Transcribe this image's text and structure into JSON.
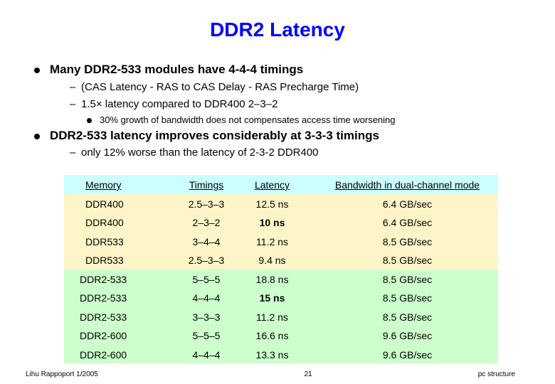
{
  "title": "DDR2 Latency",
  "bullets": {
    "b1": "Many DDR2-533 modules have 4-4-4 timings",
    "b1_sub1": "(CAS Latency - RAS to CAS Delay - RAS Precharge Time)",
    "b1_sub2": "1.5× latency compared to DDR400 2–3–2",
    "b1_sub2_sub": "30% growth of bandwidth does not compensates access time worsening",
    "b2": "DDR2-533 latency improves considerably at 3-3-3 timings",
    "b2_sub1": "only 12% worse than the latency of 2-3-2 DDR400"
  },
  "dash": "–",
  "table": {
    "headers": [
      "Memory",
      "Timings",
      "Latency",
      "Bandwidth in dual-channel mode"
    ],
    "rows": [
      {
        "memory": "DDR400",
        "timings": "2.5–3–3",
        "latency": "12.5 ns",
        "bandwidth": "6.4 GB/sec"
      },
      {
        "memory": "DDR400",
        "timings": "2–3–2",
        "latency": "10 ns",
        "bandwidth": "6.4 GB/sec"
      },
      {
        "memory": "DDR533",
        "timings": "3–4–4",
        "latency": "11.2 ns",
        "bandwidth": "8.5 GB/sec"
      },
      {
        "memory": "DDR533",
        "timings": "2.5–3–3",
        "latency": "9.4 ns",
        "bandwidth": "8.5 GB/sec"
      },
      {
        "memory": "DDR2-533",
        "timings": "5–5–5",
        "latency": "18.8 ns",
        "bandwidth": "8.5 GB/sec"
      },
      {
        "memory": "DDR2-533",
        "timings": "4–4–4",
        "latency": "15 ns",
        "bandwidth": "8.5 GB/sec"
      },
      {
        "memory": "DDR2-533",
        "timings": "3–3–3",
        "latency": "11.2 ns",
        "bandwidth": "8.5 GB/sec"
      },
      {
        "memory": "DDR2-600",
        "timings": "5–5–5",
        "latency": "16.6 ns",
        "bandwidth": "9.6 GB/sec"
      },
      {
        "memory": "DDR2-600",
        "timings": "4–4–4",
        "latency": "13.3 ns",
        "bandwidth": "9.6 GB/sec"
      }
    ]
  },
  "colors": {
    "title": "#0000ff",
    "header_row": "#ccffff",
    "ddr_rows": "#fff5c8",
    "ddr2_rows": "#ccffcc"
  },
  "footer": {
    "author": "Lihu Rappoport 1/2005",
    "page": "21",
    "course": "pc structure"
  }
}
